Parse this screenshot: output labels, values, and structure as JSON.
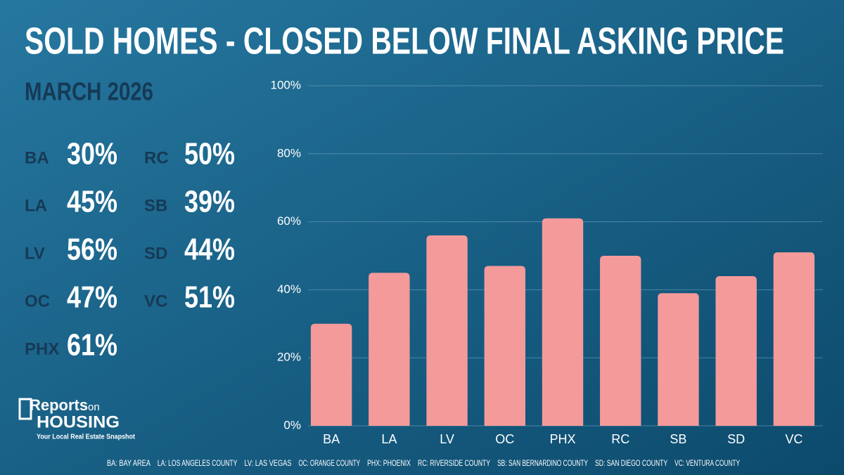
{
  "chart_data": {
    "type": "bar",
    "title": "SOLD HOMES - CLOSED BELOW FINAL ASKING PRICE",
    "subtitle": "MARCH 2026",
    "categories": [
      "BA",
      "LA",
      "LV",
      "OC",
      "PHX",
      "RC",
      "SB",
      "SD",
      "VC"
    ],
    "values": [
      30,
      45,
      56,
      47,
      61,
      50,
      39,
      44,
      51
    ],
    "value_labels": [
      "30%",
      "45%",
      "56%",
      "47%",
      "61%",
      "50%",
      "39%",
      "44%",
      "51%"
    ],
    "color": "#f59a9a",
    "ylim": [
      0,
      100
    ],
    "yticks": [
      {
        "value": 0,
        "label": "0%"
      },
      {
        "value": 20,
        "label": "20%"
      },
      {
        "value": 40,
        "label": "40%"
      },
      {
        "value": 60,
        "label": "60%"
      },
      {
        "value": 80,
        "label": "80%"
      },
      {
        "value": 100,
        "label": "100%"
      }
    ],
    "grid": true,
    "footnote": [
      "BA: BAY AREA",
      "LA: LOS ANGELES COUNTY",
      "LV: LAS VEGAS",
      "OC: ORANGE COUNTY",
      "PHX: PHOENIX",
      "RC: RIVERSIDE COUNTY",
      "SB: SAN BERNARDINO COUNTY",
      "SD: SAN DIEGO COUNTY",
      "VC: VENTURA COUNTY"
    ]
  },
  "logo": {
    "word1": "Reports",
    "word2": "on",
    "word3": "HOUSING",
    "tagline": "Your Local Real Estate Snapshot"
  }
}
